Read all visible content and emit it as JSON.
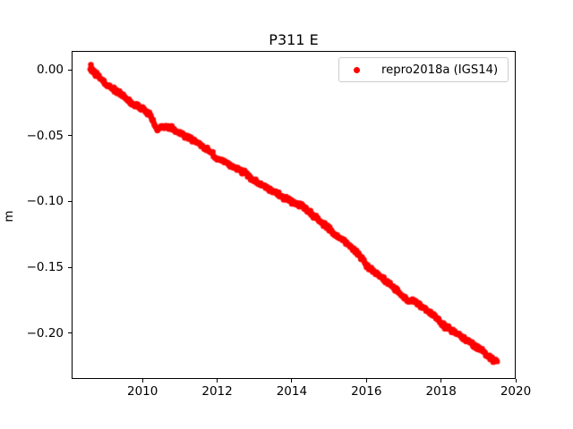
{
  "figure": {
    "title": "P311 E",
    "ylabel": "m",
    "background": "#ffffff",
    "text_color": "#000000"
  },
  "legend": {
    "label": "repro2018a (IGS14)",
    "marker_color": "#ff0000",
    "border_color": "#cccccc",
    "position": "upper right"
  },
  "chart_data": {
    "type": "scatter",
    "title": "P311 E",
    "xlabel": "",
    "ylabel": "m",
    "xlim": [
      2008.1,
      2020.0
    ],
    "ylim": [
      -0.2348,
      0.0143
    ],
    "grid": false,
    "legend_position": "upper right",
    "xticks": {
      "values": [
        2010,
        2012,
        2014,
        2016,
        2018,
        2020
      ],
      "labels": [
        "2010",
        "2012",
        "2014",
        "2016",
        "2018",
        "2020"
      ]
    },
    "yticks": {
      "values": [
        0.0,
        -0.05,
        -0.1,
        -0.15,
        -0.2
      ],
      "labels": [
        "0.00",
        "−0.05",
        "−0.10",
        "−0.15",
        "−0.20"
      ]
    },
    "series": [
      {
        "name": "repro2018a (IGS14)",
        "color": "#ff0000",
        "marker": "point",
        "trend_slope_m_per_yr": -0.0206,
        "points": [
          [
            2008.6,
            0.0015
          ],
          [
            2008.7,
            -0.0015
          ],
          [
            2008.8,
            -0.0045
          ],
          [
            2008.9,
            -0.007
          ],
          [
            2009.0,
            -0.01
          ],
          [
            2009.1,
            -0.0125
          ],
          [
            2009.2,
            -0.0145
          ],
          [
            2009.3,
            -0.0165
          ],
          [
            2009.4,
            -0.018
          ],
          [
            2009.5,
            -0.02
          ],
          [
            2009.6,
            -0.0225
          ],
          [
            2009.7,
            -0.025
          ],
          [
            2009.8,
            -0.0265
          ],
          [
            2009.9,
            -0.028
          ],
          [
            2010.0,
            -0.03
          ],
          [
            2010.1,
            -0.032
          ],
          [
            2010.2,
            -0.034
          ],
          [
            2010.3,
            -0.04
          ],
          [
            2010.4,
            -0.0455
          ],
          [
            2010.5,
            -0.0425
          ],
          [
            2010.6,
            -0.043
          ],
          [
            2010.7,
            -0.0435
          ],
          [
            2010.8,
            -0.044
          ],
          [
            2010.9,
            -0.0465
          ],
          [
            2011.0,
            -0.0485
          ],
          [
            2011.1,
            -0.0495
          ],
          [
            2011.2,
            -0.051
          ],
          [
            2011.3,
            -0.0525
          ],
          [
            2011.4,
            -0.054
          ],
          [
            2011.5,
            -0.056
          ],
          [
            2011.6,
            -0.058
          ],
          [
            2011.7,
            -0.06
          ],
          [
            2011.8,
            -0.062
          ],
          [
            2011.9,
            -0.0645
          ],
          [
            2012.0,
            -0.0675
          ],
          [
            2012.1,
            -0.069
          ],
          [
            2012.2,
            -0.0705
          ],
          [
            2012.3,
            -0.0715
          ],
          [
            2012.4,
            -0.073
          ],
          [
            2012.5,
            -0.0745
          ],
          [
            2012.6,
            -0.076
          ],
          [
            2012.7,
            -0.0775
          ],
          [
            2012.8,
            -0.0795
          ],
          [
            2012.9,
            -0.082
          ],
          [
            2013.0,
            -0.0845
          ],
          [
            2013.1,
            -0.086
          ],
          [
            2013.2,
            -0.0875
          ],
          [
            2013.3,
            -0.089
          ],
          [
            2013.4,
            -0.0905
          ],
          [
            2013.5,
            -0.092
          ],
          [
            2013.6,
            -0.0935
          ],
          [
            2013.7,
            -0.0955
          ],
          [
            2013.8,
            -0.0975
          ],
          [
            2013.9,
            -0.099
          ],
          [
            2014.0,
            -0.1005
          ],
          [
            2014.1,
            -0.1015
          ],
          [
            2014.2,
            -0.1025
          ],
          [
            2014.3,
            -0.104
          ],
          [
            2014.4,
            -0.106
          ],
          [
            2014.5,
            -0.1085
          ],
          [
            2014.6,
            -0.111
          ],
          [
            2014.7,
            -0.1135
          ],
          [
            2014.8,
            -0.116
          ],
          [
            2014.9,
            -0.1185
          ],
          [
            2015.0,
            -0.121
          ],
          [
            2015.1,
            -0.1235
          ],
          [
            2015.2,
            -0.126
          ],
          [
            2015.3,
            -0.128
          ],
          [
            2015.4,
            -0.13
          ],
          [
            2015.5,
            -0.1325
          ],
          [
            2015.6,
            -0.135
          ],
          [
            2015.7,
            -0.1375
          ],
          [
            2015.8,
            -0.1405
          ],
          [
            2015.9,
            -0.1445
          ],
          [
            2016.0,
            -0.1485
          ],
          [
            2016.1,
            -0.151
          ],
          [
            2016.2,
            -0.153
          ],
          [
            2016.3,
            -0.155
          ],
          [
            2016.4,
            -0.1575
          ],
          [
            2016.5,
            -0.16
          ],
          [
            2016.6,
            -0.1625
          ],
          [
            2016.7,
            -0.165
          ],
          [
            2016.8,
            -0.1675
          ],
          [
            2016.9,
            -0.17
          ],
          [
            2017.0,
            -0.173
          ],
          [
            2017.1,
            -0.1755
          ],
          [
            2017.2,
            -0.175
          ],
          [
            2017.3,
            -0.176
          ],
          [
            2017.4,
            -0.178
          ],
          [
            2017.5,
            -0.18
          ],
          [
            2017.6,
            -0.182
          ],
          [
            2017.7,
            -0.1845
          ],
          [
            2017.8,
            -0.1865
          ],
          [
            2017.9,
            -0.189
          ],
          [
            2018.0,
            -0.1925
          ],
          [
            2018.1,
            -0.195
          ],
          [
            2018.2,
            -0.1965
          ],
          [
            2018.3,
            -0.198
          ],
          [
            2018.4,
            -0.2
          ],
          [
            2018.5,
            -0.2015
          ],
          [
            2018.6,
            -0.2035
          ],
          [
            2018.7,
            -0.2055
          ],
          [
            2018.8,
            -0.2075
          ],
          [
            2018.9,
            -0.2095
          ],
          [
            2019.0,
            -0.2115
          ],
          [
            2019.1,
            -0.2135
          ],
          [
            2019.2,
            -0.216
          ],
          [
            2019.3,
            -0.218
          ],
          [
            2019.4,
            -0.2205
          ],
          [
            2019.5,
            -0.2215
          ]
        ]
      }
    ]
  }
}
